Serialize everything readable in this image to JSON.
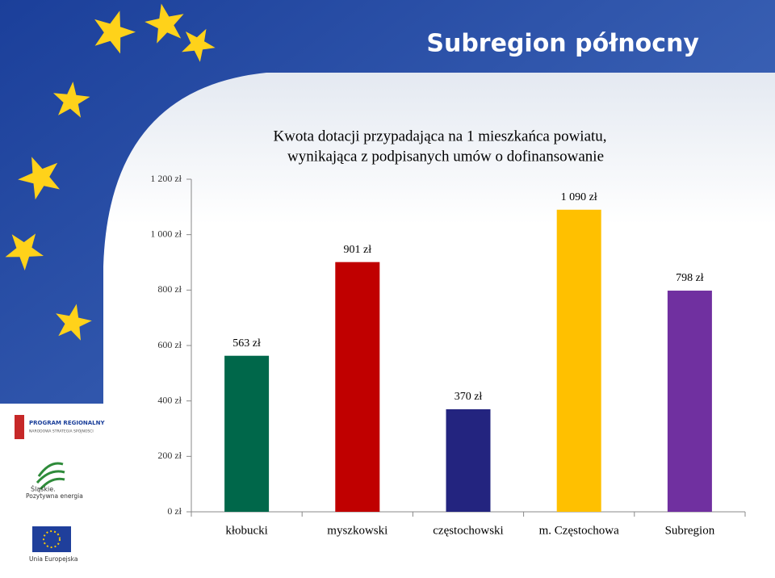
{
  "slide_title": "Subregion północny",
  "logos": [
    "PROGRAM REGIONALNY",
    "NARODOWA STRATEGIA SPÓJNOŚCI",
    "Śląskie.",
    "Pozytywna energia",
    "Unia Europejska"
  ],
  "chart_data": {
    "type": "bar",
    "title": [
      "Kwota dotacji przypadająca na 1 mieszkańca powiatu,",
      "wynikająca z podpisanych umów o dofinansowanie"
    ],
    "categories": [
      "kłobucki",
      "myszkowski",
      "częstochowski",
      "m. Częstochowa",
      "Subregion"
    ],
    "values": [
      563,
      901,
      370,
      1090,
      798
    ],
    "value_labels": [
      "563 zł",
      "901 zł",
      "370 zł",
      "1 090 zł",
      "798 zł"
    ],
    "colors": [
      "#00674a",
      "#c00000",
      "#23247f",
      "#ffc000",
      "#7030a0"
    ],
    "ylim": [
      0,
      1200
    ],
    "yticks": [
      {
        "value": 0,
        "label": "0 zł"
      },
      {
        "value": 200,
        "label": "200 zł"
      },
      {
        "value": 400,
        "label": "400 zł"
      },
      {
        "value": 600,
        "label": "600 zł"
      },
      {
        "value": 800,
        "label": "800 zł"
      },
      {
        "value": 1000,
        "label": "1 000 zł"
      },
      {
        "value": 1200,
        "label": "1 200 zł"
      }
    ],
    "grid": false
  }
}
